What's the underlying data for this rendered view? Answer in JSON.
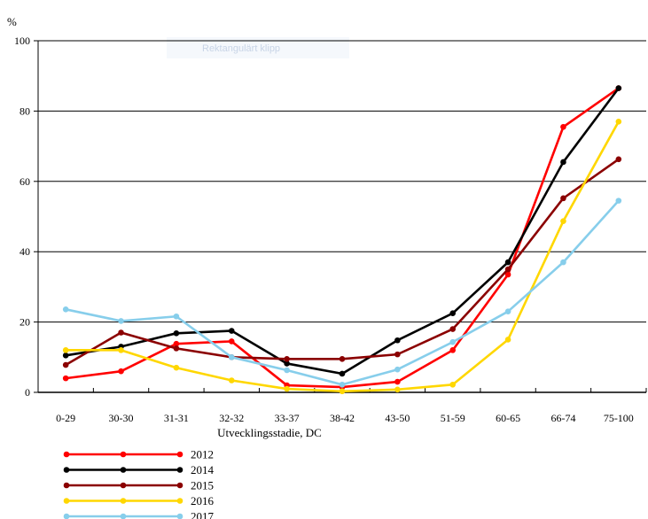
{
  "chart_data": {
    "type": "line",
    "ylabel": "%",
    "xlabel": "Utvecklingsstadie, DC",
    "ylim": [
      0,
      100
    ],
    "yticks": [
      0,
      20,
      40,
      60,
      80,
      100
    ],
    "grid": true,
    "legend_position": "bottom-left",
    "categories": [
      "0-29",
      "30-30",
      "31-31",
      "32-32",
      "33-37",
      "38-42",
      "43-50",
      "51-59",
      "60-65",
      "66-74",
      "75-100"
    ],
    "series": [
      {
        "name": "2012",
        "color": "#ff0000",
        "values": [
          4,
          6,
          13.8,
          14.5,
          2,
          1.5,
          3,
          12,
          33.5,
          75.5,
          86.5
        ]
      },
      {
        "name": "2014",
        "color": "#000000",
        "values": [
          10.5,
          13,
          16.8,
          17.5,
          8.2,
          5.3,
          14.8,
          22.5,
          37,
          65.5,
          86.5
        ]
      },
      {
        "name": "2015",
        "color": "#8b0000",
        "values": [
          7.8,
          17,
          12.5,
          10,
          9.5,
          9.5,
          10.8,
          18,
          35,
          55.2,
          66.3
        ]
      },
      {
        "name": "2016",
        "color": "#ffd700",
        "values": [
          12,
          12,
          7,
          3.4,
          1,
          0.3,
          0.8,
          2.2,
          15,
          48.7,
          77
        ]
      },
      {
        "name": "2017",
        "color": "#87ceeb",
        "values": [
          23.6,
          20.3,
          21.6,
          10,
          6.3,
          2.2,
          6.5,
          14.3,
          23,
          37,
          54.5
        ]
      }
    ]
  },
  "overlay": {
    "snip_label": "Rektangulärt klipp"
  }
}
